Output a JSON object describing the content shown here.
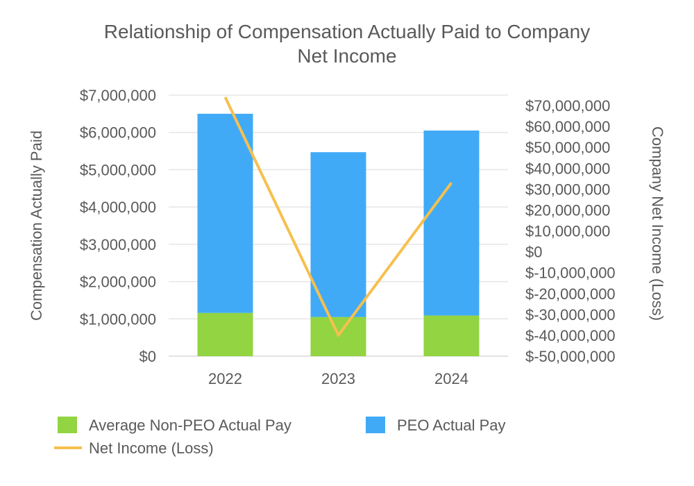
{
  "chart_data": {
    "type": "bar",
    "stacked": true,
    "title": "Relationship of Compensation Actually Paid to Company Net Income",
    "title_lines": [
      "Relationship of Compensation Actually Paid to Company",
      "Net Income"
    ],
    "categories": [
      "2022",
      "2023",
      "2024"
    ],
    "series": [
      {
        "name": "Average Non-PEO Actual Pay",
        "type": "bar",
        "axis": "left",
        "color": "#92d441",
        "values": [
          1160000,
          1050000,
          1090000
        ]
      },
      {
        "name": "PEO Actual Pay",
        "type": "bar",
        "axis": "left",
        "color": "#41aaf6",
        "values": [
          5340000,
          4420000,
          4960000
        ]
      },
      {
        "name": "Net Income (Loss)",
        "type": "line",
        "axis": "right",
        "color": "#f6c04f",
        "values": [
          74000000,
          -40000000,
          33000000
        ]
      }
    ],
    "ylabel": "Compensation Actually Paid",
    "y2label": "Company Net Income (Loss)",
    "ylim": [
      0,
      7000000
    ],
    "y2lim": [
      -50000000,
      70000000
    ],
    "yticks": [
      0,
      1000000,
      2000000,
      3000000,
      4000000,
      5000000,
      6000000,
      7000000
    ],
    "ytick_labels": [
      "$0",
      "$1,000,000",
      "$2,000,000",
      "$3,000,000",
      "$4,000,000",
      "$5,000,000",
      "$6,000,000",
      "$7,000,000"
    ],
    "y2ticks": [
      -50000000,
      -40000000,
      -30000000,
      -20000000,
      -10000000,
      0,
      10000000,
      20000000,
      30000000,
      40000000,
      50000000,
      60000000,
      70000000
    ],
    "y2tick_labels": [
      "$-50,000,000",
      "$-40,000,000",
      "$-30,000,000",
      "$-20,000,000",
      "$-10,000,000",
      "$0",
      "$10,000,000",
      "$20,000,000",
      "$30,000,000",
      "$40,000,000",
      "$50,000,000",
      "$60,000,000",
      "$70,000,000"
    ],
    "grid": true,
    "legend_position": "bottom"
  }
}
